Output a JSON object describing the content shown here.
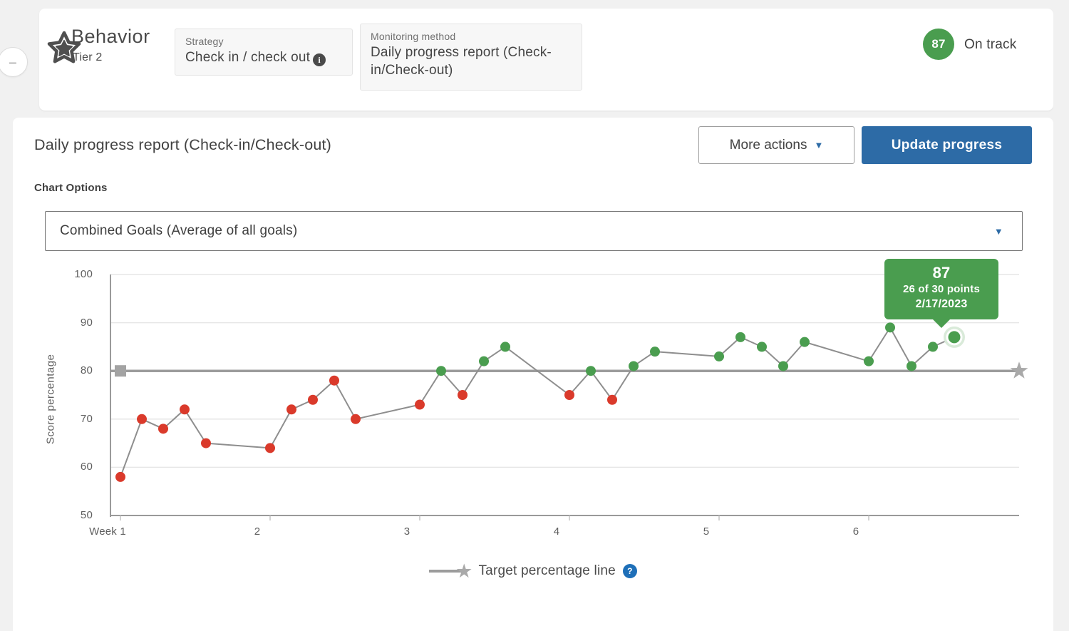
{
  "header": {
    "collapse_glyph": "–",
    "category": "Behavior",
    "tier": "Tier 2",
    "strategy": {
      "label": "Strategy",
      "value": "Check in / check out",
      "info_glyph": "i"
    },
    "monitoring": {
      "label": "Monitoring method",
      "value": "Daily progress report (Check-in/Check-out)"
    },
    "score_badge": {
      "value": "87",
      "status": "On track"
    }
  },
  "toolbar": {
    "title": "Daily progress report (Check-in/Check-out)",
    "more_actions_label": "More actions",
    "caret_glyph": "▼",
    "update_progress_label": "Update progress"
  },
  "chart_options": {
    "label": "Chart Options",
    "selected_option": "Combined Goals (Average of all goals)"
  },
  "tooltip": {
    "score": "87",
    "points": "26 of 30 points",
    "date": "2/17/2023"
  },
  "legend": {
    "target_label": "Target percentage line",
    "help_glyph": "?",
    "star_glyph": "★"
  },
  "chart_data": {
    "type": "line",
    "ylabel": "Score percentage",
    "xlabel": "",
    "ylim": [
      50,
      100
    ],
    "yticks": [
      100,
      90,
      80,
      70,
      60,
      50
    ],
    "xticks": [
      "Week 1",
      "2",
      "3",
      "4",
      "5",
      "6"
    ],
    "target_value": 80,
    "days_per_week": 7,
    "series": [
      {
        "name": "Combined Goals (Average of all goals)",
        "weeks": [
          [
            58,
            70,
            68,
            72,
            65
          ],
          [
            64,
            72,
            74,
            78,
            70
          ],
          [
            73,
            80,
            75,
            82,
            85
          ],
          [
            75,
            80,
            74,
            81,
            84
          ],
          [
            83,
            87,
            85,
            81,
            86
          ],
          [
            82,
            89,
            81,
            85,
            87
          ]
        ]
      }
    ],
    "highlight_last_point": true,
    "legend_position": "bottom",
    "grid": true
  },
  "colors": {
    "green": "#4a9d4f",
    "red": "#da3a2b",
    "blue_button": "#2d6ba6",
    "blue_accent": "#2d6ba6",
    "help_blue": "#1e6fb8",
    "line_gray": "#8e8e8e",
    "target_gray": "#9c9c9c",
    "marker_gray": "#a9a9a9",
    "grid_gray": "#e6e6e6",
    "axis_gray": "#9a9a9a",
    "halo_outer": "#d9ead9",
    "tooltip_bg": "#4a9d4f"
  }
}
